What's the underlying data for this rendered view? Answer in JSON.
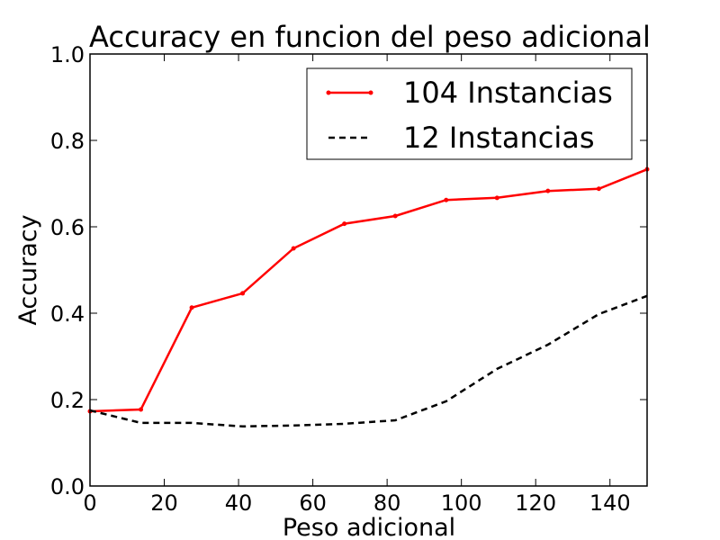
{
  "chart_data": {
    "type": "line",
    "title": "Accuracy en funcion del peso adicional",
    "xlabel": "Peso adicional",
    "ylabel": "Accuracy",
    "xlim": [
      0,
      150
    ],
    "ylim": [
      0.0,
      1.0
    ],
    "x_ticks": [
      "0",
      "20",
      "40",
      "60",
      "80",
      "100",
      "120",
      "140"
    ],
    "y_ticks": [
      "0.0",
      "0.2",
      "0.4",
      "0.6",
      "0.8",
      "1.0"
    ],
    "grid": false,
    "legend_position": "top-right",
    "series": [
      {
        "name": "104 Instancias",
        "color": "#ff0000",
        "style": "solid-with-markers",
        "x": [
          0,
          13.7,
          27.4,
          41.1,
          54.8,
          68.5,
          82.2,
          95.9,
          109.6,
          123.3,
          137,
          150
        ],
        "y": [
          0.173,
          0.177,
          0.413,
          0.446,
          0.55,
          0.607,
          0.625,
          0.662,
          0.667,
          0.683,
          0.688,
          0.733
        ]
      },
      {
        "name": "12 Instancias",
        "color": "#000000",
        "style": "dashed",
        "x": [
          0,
          13.7,
          27.4,
          41.1,
          54.8,
          68.5,
          82.2,
          95.9,
          109.6,
          123.3,
          137,
          150
        ],
        "y": [
          0.175,
          0.146,
          0.146,
          0.138,
          0.14,
          0.144,
          0.152,
          0.196,
          0.271,
          0.327,
          0.398,
          0.44
        ]
      }
    ]
  }
}
